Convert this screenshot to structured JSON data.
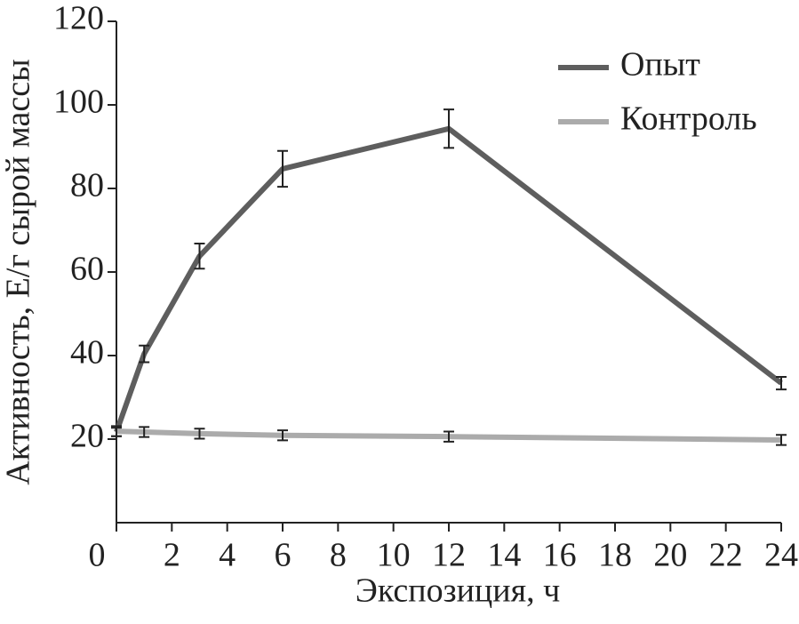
{
  "chart_data": {
    "type": "line",
    "x_label": "Экспозиция, ч",
    "y_label": "Активность, Е/г сырой массы",
    "x": [
      0,
      1,
      3,
      6,
      12,
      24
    ],
    "series": [
      {
        "name": "Опыт",
        "color": "#5e5e5e",
        "values": [
          21.7,
          40.4,
          63.8,
          84.7,
          94.3,
          33.4
        ],
        "errors": [
          1.0,
          2.0,
          3.0,
          4.3,
          4.6,
          1.5
        ]
      },
      {
        "name": "Контроль",
        "color": "#ababab",
        "values": [
          21.9,
          21.7,
          21.3,
          20.9,
          20.6,
          19.8
        ],
        "errors": [
          1.2,
          1.2,
          1.2,
          1.2,
          1.2,
          1.2
        ]
      }
    ],
    "xlim": [
      0,
      24
    ],
    "xticks": [
      0,
      2,
      4,
      6,
      8,
      10,
      12,
      14,
      16,
      18,
      20,
      22,
      24
    ],
    "ylim": [
      0,
      120
    ],
    "yticks": [
      20,
      40,
      60,
      80,
      100,
      120
    ],
    "legend": "upper right"
  }
}
